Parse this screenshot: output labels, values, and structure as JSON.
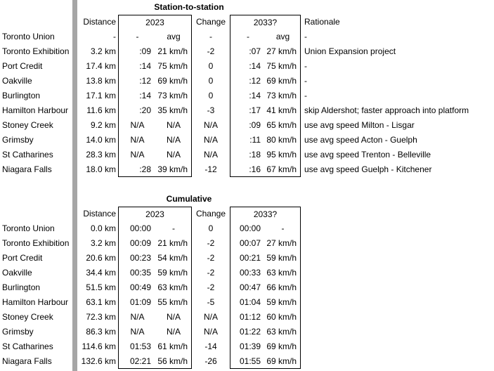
{
  "page": {
    "background_color": "#ffffff",
    "text_color": "#000000",
    "box_border_color": "#000000",
    "pane_divider_color": "#a6a6a6"
  },
  "station_table": {
    "title": "Station-to-station",
    "headers": {
      "distance": "Distance",
      "group_2023": "2023",
      "change": "Change",
      "group_2033": "2033?",
      "rationale": "Rationale"
    },
    "rows": [
      [
        "Toronto Union",
        "-",
        "-",
        "avg",
        "-",
        "-",
        "avg",
        "-"
      ],
      [
        "Toronto Exhibition",
        "3.2 km",
        ":09",
        "21 km/h",
        "-2",
        ":07",
        "27 km/h",
        "Union Expansion project"
      ],
      [
        "Port Credit",
        "17.4 km",
        ":14",
        "75 km/h",
        "0",
        ":14",
        "75 km/h",
        "-"
      ],
      [
        "Oakville",
        "13.8 km",
        ":12",
        "69 km/h",
        "0",
        ":12",
        "69 km/h",
        "-"
      ],
      [
        "Burlington",
        "17.1 km",
        ":14",
        "73 km/h",
        "0",
        ":14",
        "73 km/h",
        "-"
      ],
      [
        "Hamilton Harbour",
        "11.6 km",
        ":20",
        "35 km/h",
        "-3",
        ":17",
        "41 km/h",
        "skip Aldershot; faster approach into platform"
      ],
      [
        "Stoney Creek",
        "9.2 km",
        "N/A",
        "N/A",
        "N/A",
        ":09",
        "65 km/h",
        "use avg speed Milton - Lisgar"
      ],
      [
        "Grimsby",
        "14.0 km",
        "N/A",
        "N/A",
        "N/A",
        ":11",
        "80 km/h",
        "use avg speed Acton - Guelph"
      ],
      [
        "St Catharines",
        "28.3 km",
        "N/A",
        "N/A",
        "N/A",
        ":18",
        "95 km/h",
        "use avg speed Trenton - Belleville"
      ],
      [
        "Niagara Falls",
        "18.0 km",
        ":28",
        "39 km/h",
        "-12",
        ":16",
        "67 km/h",
        "use avg speed Guelph - Kitchener"
      ]
    ]
  },
  "cumulative_table": {
    "title": "Cumulative",
    "headers": {
      "distance": "Distance",
      "group_2023": "2023",
      "change": "Change",
      "group_2033": "2033?"
    },
    "rows": [
      [
        "Toronto Union",
        "0.0 km",
        "00:00",
        "-",
        "0",
        "00:00",
        "-"
      ],
      [
        "Toronto Exhibition",
        "3.2 km",
        "00:09",
        "21 km/h",
        "-2",
        "00:07",
        "27 km/h"
      ],
      [
        "Port Credit",
        "20.6 km",
        "00:23",
        "54 km/h",
        "-2",
        "00:21",
        "59 km/h"
      ],
      [
        "Oakville",
        "34.4 km",
        "00:35",
        "59 km/h",
        "-2",
        "00:33",
        "63 km/h"
      ],
      [
        "Burlington",
        "51.5 km",
        "00:49",
        "63 km/h",
        "-2",
        "00:47",
        "66 km/h"
      ],
      [
        "Hamilton Harbour",
        "63.1 km",
        "01:09",
        "55 km/h",
        "-5",
        "01:04",
        "59 km/h"
      ],
      [
        "Stoney Creek",
        "72.3 km",
        "N/A",
        "N/A",
        "N/A",
        "01:12",
        "60 km/h"
      ],
      [
        "Grimsby",
        "86.3 km",
        "N/A",
        "N/A",
        "N/A",
        "01:22",
        "63 km/h"
      ],
      [
        "St Catharines",
        "114.6 km",
        "01:53",
        "61 km/h",
        "-14",
        "01:39",
        "69 km/h"
      ],
      [
        "Niagara Falls",
        "132.6 km",
        "02:21",
        "56 km/h",
        "-26",
        "01:55",
        "69 km/h"
      ]
    ]
  }
}
